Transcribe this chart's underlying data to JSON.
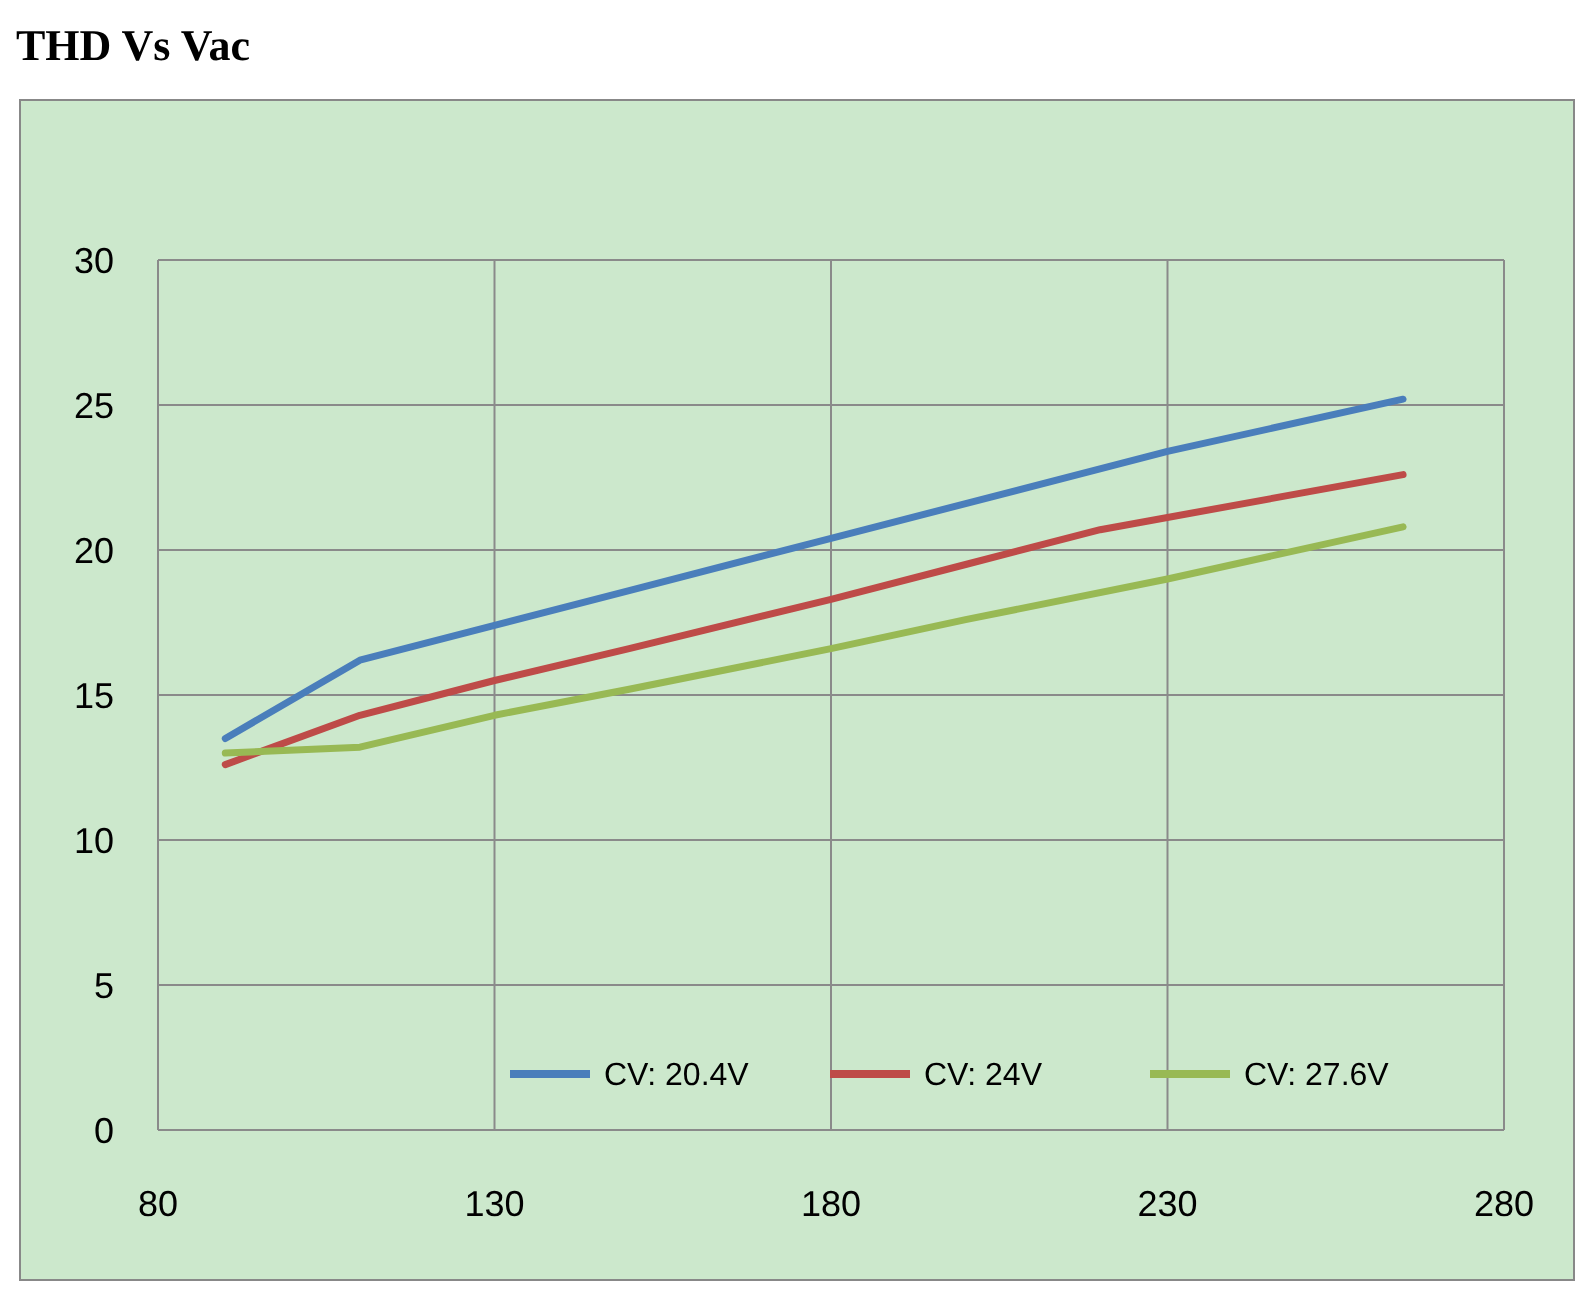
{
  "chart_data": {
    "type": "line",
    "title": "THD Vs Vac",
    "series": [
      {
        "name": "CV: 20.4V",
        "color": "#4a7ebb",
        "x": [
          90,
          110,
          130,
          150,
          180,
          200,
          230,
          265
        ],
        "values": [
          13.5,
          16.2,
          17.4,
          18.6,
          20.4,
          21.6,
          23.4,
          25.2
        ]
      },
      {
        "name": "CV: 24V",
        "color": "#be4b48",
        "x": [
          90,
          110,
          130,
          150,
          180,
          200,
          220,
          265
        ],
        "values": [
          12.6,
          14.3,
          15.5,
          16.6,
          18.3,
          19.5,
          20.7,
          22.6
        ]
      },
      {
        "name": "CV: 27.6V",
        "color": "#98b954",
        "x": [
          90,
          110,
          130,
          150,
          180,
          200,
          230,
          265
        ],
        "values": [
          13.0,
          13.2,
          14.3,
          15.2,
          16.6,
          17.6,
          19.0,
          20.8
        ]
      }
    ],
    "xlim": [
      80,
      280
    ],
    "xticks": [
      80,
      130,
      180,
      230,
      280
    ],
    "ylim": [
      0,
      30
    ],
    "yticks": [
      0,
      5,
      10,
      15,
      20,
      25,
      30
    ],
    "grid": true,
    "legend": "bottom"
  }
}
